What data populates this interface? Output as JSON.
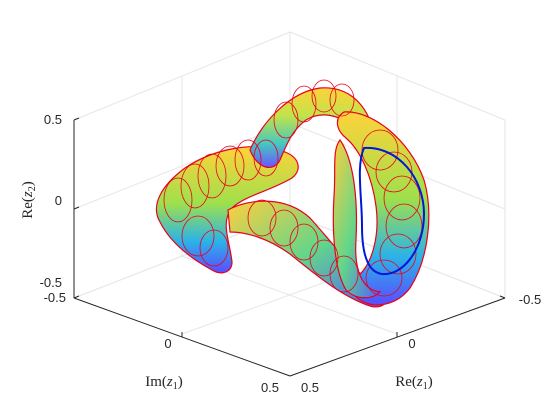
{
  "chart_data": {
    "type": "surface",
    "title": "",
    "axes": {
      "x": {
        "label_prefix": "Re(",
        "var": "z",
        "sub": "1",
        "label_suffix": ")",
        "ticks": [
          "-0.5",
          "0",
          "0.5"
        ],
        "lim": [
          -0.5,
          0.5
        ]
      },
      "y": {
        "label_prefix": "Im(",
        "var": "z",
        "sub": "1",
        "label_suffix": ")",
        "ticks": [
          "-0.5",
          "0",
          "0.5"
        ],
        "lim": [
          -0.5,
          0.5
        ]
      },
      "z": {
        "label_prefix": "Re(",
        "var": "z",
        "sub": "2",
        "label_suffix": ")",
        "ticks": [
          "-0.5",
          "0",
          "0.5"
        ],
        "lim": [
          -0.5,
          0.5
        ]
      }
    },
    "grid": true,
    "surface": {
      "shape": "torus-knot tube (trefoil-like), parametrized by (Re z1, Im z1, Re z2)",
      "colormap": [
        "#3b3bff",
        "#2bb3e8",
        "#3cd6a2",
        "#b6e04a",
        "#ffd23a"
      ],
      "mesh_color": "#e8001c",
      "highlight_curve_color": "#0018d8"
    }
  }
}
